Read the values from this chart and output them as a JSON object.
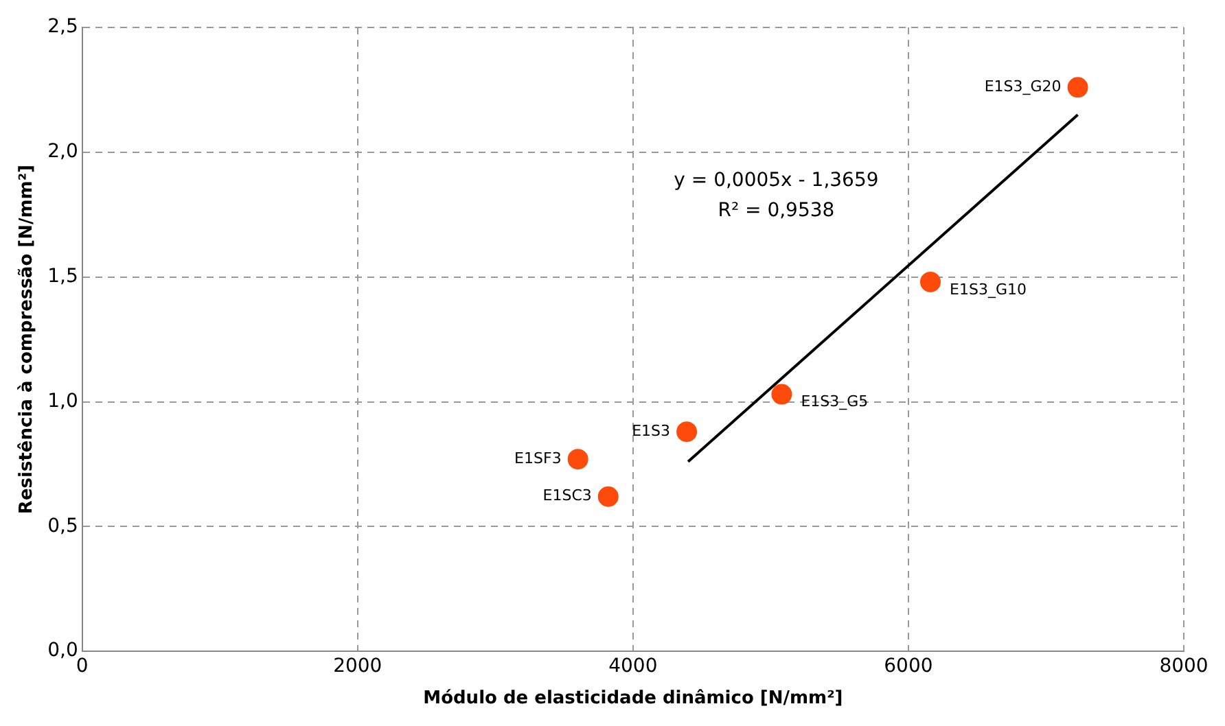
{
  "chart_data": {
    "type": "scatter",
    "xlabel": "Módulo de elasticidade dinâmico [N/mm²]",
    "ylabel": "Resistência à compressão [N/mm²]",
    "xlim": [
      0,
      8000
    ],
    "xticks": [
      0,
      2000,
      4000,
      6000,
      8000
    ],
    "ylim": [
      0,
      2.5
    ],
    "yticks": [
      {
        "value": 0,
        "label": "0,0"
      },
      {
        "value": 0.5,
        "label": "0,5"
      },
      {
        "value": 1,
        "label": "1,0"
      },
      {
        "value": 1.5,
        "label": "1,5"
      },
      {
        "value": 2,
        "label": "2,0"
      },
      {
        "value": 2.5,
        "label": "2,5"
      }
    ],
    "grid": true,
    "legend": false,
    "marker": "circle",
    "series": [
      {
        "type": "scatter",
        "color": "#fe4a0a",
        "x": [
          7230,
          6160,
          5080,
          4390,
          3600,
          3820
        ],
        "values": [
          2.26,
          1.48,
          1.03,
          0.88,
          0.77,
          0.62
        ]
      },
      {
        "type": "line",
        "color": "#000000",
        "marker": "none",
        "x": [
          4400,
          7230
        ],
        "values": [
          0.76,
          2.15
        ]
      }
    ],
    "annotations": [
      {
        "text": "E1S3_G20",
        "x": 7230,
        "y": 2.26
      },
      {
        "text": "E1S3_G10",
        "x": 6160,
        "y": 1.48
      },
      {
        "text": "E1S3_G5",
        "x": 5080,
        "y": 1.03
      },
      {
        "text": "E1S3",
        "x": 4390,
        "y": 0.88
      },
      {
        "text": "E1SF3",
        "x": 3600,
        "y": 0.77
      },
      {
        "text": "E1SC3",
        "x": 3820,
        "y": 0.62
      },
      "y = 0,0005x - 1,3659\nR² = 0,9538"
    ]
  }
}
